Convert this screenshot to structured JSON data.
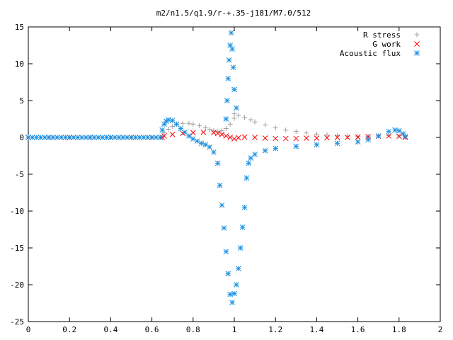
{
  "chart_data": {
    "type": "scatter",
    "title": "m2/n1.5/q1.9/r-+.35-j181/M7.0/512",
    "xlabel": "",
    "ylabel": "",
    "xlim": [
      0,
      2
    ],
    "ylim": [
      -25,
      15
    ],
    "xticks": [
      "0",
      "0.2",
      "0.4",
      "0.6",
      "0.8",
      "1",
      "1.2",
      "1.4",
      "1.6",
      "1.8",
      "2"
    ],
    "yticks": [
      "15",
      "10",
      "5",
      "0",
      "-5",
      "-10",
      "-15",
      "-20",
      "-25"
    ],
    "grid": false,
    "legend_position": "top-right",
    "series": [
      {
        "name": "R stress",
        "marker": "+",
        "color": "#a0a0a0",
        "points": [
          [
            0,
            0
          ],
          [
            0.1,
            0
          ],
          [
            0.2,
            0
          ],
          [
            0.3,
            0
          ],
          [
            0.4,
            0
          ],
          [
            0.5,
            0
          ],
          [
            0.6,
            0
          ],
          [
            0.65,
            0
          ],
          [
            0.66,
            0.6
          ],
          [
            0.68,
            1.1
          ],
          [
            0.7,
            1.5
          ],
          [
            0.72,
            1.8
          ],
          [
            0.75,
            1.9
          ],
          [
            0.78,
            1.9
          ],
          [
            0.8,
            1.8
          ],
          [
            0.83,
            1.6
          ],
          [
            0.86,
            1.3
          ],
          [
            0.88,
            1.1
          ],
          [
            0.9,
            0.9
          ],
          [
            0.92,
            0.8
          ],
          [
            0.94,
            0.9
          ],
          [
            0.96,
            1.2
          ],
          [
            0.98,
            1.8
          ],
          [
            1.0,
            2.6
          ],
          [
            1.0,
            3.2
          ],
          [
            1.02,
            3.0
          ],
          [
            1.05,
            2.7
          ],
          [
            1.08,
            2.4
          ],
          [
            1.1,
            2.1
          ],
          [
            1.15,
            1.7
          ],
          [
            1.2,
            1.3
          ],
          [
            1.25,
            1.0
          ],
          [
            1.3,
            0.8
          ],
          [
            1.35,
            0.6
          ],
          [
            1.4,
            0.45
          ],
          [
            1.45,
            0.35
          ],
          [
            1.5,
            0.25
          ],
          [
            1.55,
            0.2
          ],
          [
            1.6,
            0.15
          ],
          [
            1.65,
            0.15
          ],
          [
            1.7,
            0.2
          ],
          [
            1.75,
            0.25
          ],
          [
            1.8,
            0.2
          ],
          [
            1.83,
            0.1
          ]
        ]
      },
      {
        "name": "G work",
        "marker": "x",
        "color": "#ff0000",
        "points": [
          [
            0,
            0
          ],
          [
            0.1,
            0
          ],
          [
            0.2,
            0
          ],
          [
            0.3,
            0
          ],
          [
            0.4,
            0
          ],
          [
            0.5,
            0
          ],
          [
            0.6,
            0
          ],
          [
            0.65,
            0
          ],
          [
            0.66,
            0.2
          ],
          [
            0.7,
            0.4
          ],
          [
            0.75,
            0.55
          ],
          [
            0.8,
            0.65
          ],
          [
            0.85,
            0.7
          ],
          [
            0.9,
            0.65
          ],
          [
            0.92,
            0.55
          ],
          [
            0.94,
            0.4
          ],
          [
            0.96,
            0.2
          ],
          [
            0.98,
            0
          ],
          [
            1.0,
            -0.2
          ],
          [
            1.02,
            -0.05
          ],
          [
            1.05,
            0.05
          ],
          [
            1.1,
            0
          ],
          [
            1.15,
            -0.1
          ],
          [
            1.2,
            -0.15
          ],
          [
            1.25,
            -0.15
          ],
          [
            1.3,
            -0.15
          ],
          [
            1.35,
            -0.1
          ],
          [
            1.4,
            -0.1
          ],
          [
            1.45,
            -0.05
          ],
          [
            1.5,
            0
          ],
          [
            1.55,
            0
          ],
          [
            1.6,
            0.05
          ],
          [
            1.65,
            0.1
          ],
          [
            1.7,
            0.15
          ],
          [
            1.75,
            0.2
          ],
          [
            1.8,
            0.15
          ],
          [
            1.83,
            0
          ]
        ]
      },
      {
        "name": "Acoustic flux",
        "marker": "*",
        "color": "#1e90e0",
        "points": [
          [
            0,
            0
          ],
          [
            0.02,
            0
          ],
          [
            0.04,
            0
          ],
          [
            0.06,
            0
          ],
          [
            0.08,
            0
          ],
          [
            0.1,
            0
          ],
          [
            0.12,
            0
          ],
          [
            0.14,
            0
          ],
          [
            0.16,
            0
          ],
          [
            0.18,
            0
          ],
          [
            0.2,
            0
          ],
          [
            0.22,
            0
          ],
          [
            0.24,
            0
          ],
          [
            0.26,
            0
          ],
          [
            0.28,
            0
          ],
          [
            0.3,
            0
          ],
          [
            0.32,
            0
          ],
          [
            0.34,
            0
          ],
          [
            0.36,
            0
          ],
          [
            0.38,
            0
          ],
          [
            0.4,
            0
          ],
          [
            0.42,
            0
          ],
          [
            0.44,
            0
          ],
          [
            0.46,
            0
          ],
          [
            0.48,
            0
          ],
          [
            0.5,
            0
          ],
          [
            0.52,
            0
          ],
          [
            0.54,
            0
          ],
          [
            0.56,
            0
          ],
          [
            0.58,
            0
          ],
          [
            0.6,
            0
          ],
          [
            0.62,
            0
          ],
          [
            0.64,
            0
          ],
          [
            0.65,
            1.0
          ],
          [
            0.66,
            1.8
          ],
          [
            0.67,
            2.2
          ],
          [
            0.68,
            2.4
          ],
          [
            0.7,
            2.3
          ],
          [
            0.72,
            1.8
          ],
          [
            0.74,
            1.2
          ],
          [
            0.76,
            0.7
          ],
          [
            0.78,
            0.2
          ],
          [
            0.8,
            -0.2
          ],
          [
            0.82,
            -0.5
          ],
          [
            0.84,
            -0.8
          ],
          [
            0.86,
            -1.0
          ],
          [
            0.88,
            -1.3
          ],
          [
            0.9,
            -2.0
          ],
          [
            0.92,
            -3.5
          ],
          [
            0.93,
            -6.5
          ],
          [
            0.94,
            -9.2
          ],
          [
            0.95,
            -12.3
          ],
          [
            0.96,
            -15.5
          ],
          [
            0.97,
            -18.5
          ],
          [
            0.98,
            -21.3
          ],
          [
            0.99,
            -22.4
          ],
          [
            1.0,
            -21.2
          ],
          [
            1.01,
            -20.0
          ],
          [
            1.02,
            -17.8
          ],
          [
            1.03,
            -15.0
          ],
          [
            1.04,
            -12.2
          ],
          [
            1.05,
            -9.5
          ],
          [
            1.06,
            -5.5
          ],
          [
            1.07,
            -3.5
          ],
          [
            1.08,
            -2.8
          ],
          [
            1.1,
            -2.3
          ],
          [
            1.15,
            -1.8
          ],
          [
            1.2,
            -1.5
          ],
          [
            1.3,
            -1.2
          ],
          [
            1.4,
            -1.0
          ],
          [
            1.5,
            -0.8
          ],
          [
            1.6,
            -0.6
          ],
          [
            1.65,
            -0.3
          ],
          [
            1.7,
            0.2
          ],
          [
            1.75,
            0.8
          ],
          [
            1.78,
            1.0
          ],
          [
            1.8,
            0.9
          ],
          [
            1.82,
            0.5
          ],
          [
            1.83,
            0.1
          ],
          [
            0.96,
            2.5
          ],
          [
            0.965,
            5.0
          ],
          [
            0.97,
            8.0
          ],
          [
            0.975,
            10.5
          ],
          [
            0.98,
            12.5
          ],
          [
            0.985,
            14.2
          ],
          [
            0.99,
            12.0
          ],
          [
            0.995,
            9.5
          ],
          [
            1.0,
            6.5
          ],
          [
            1.01,
            4.0
          ]
        ]
      }
    ]
  }
}
